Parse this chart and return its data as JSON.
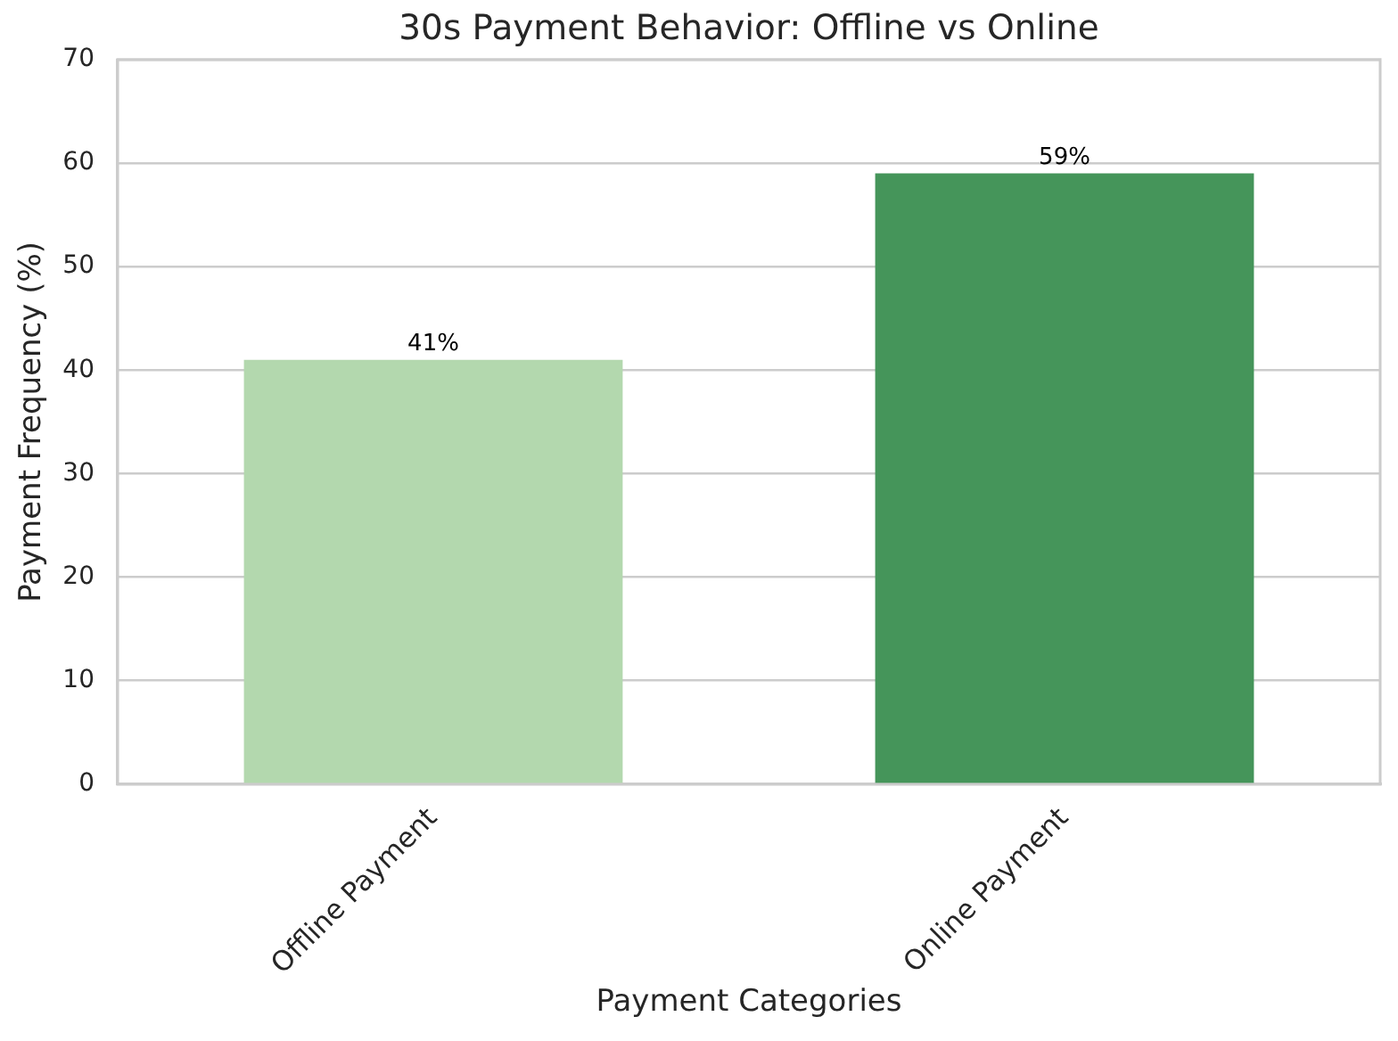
{
  "chart_data": {
    "type": "bar",
    "title": "30s Payment Behavior: Offline vs Online",
    "xlabel": "Payment Categories",
    "ylabel": "Payment Frequency (%)",
    "categories": [
      "Offline Payment",
      "Online Payment"
    ],
    "values": [
      41,
      59
    ],
    "colors": [
      "#b3d8ae",
      "#45955a"
    ],
    "value_labels": [
      "41%",
      "59%"
    ],
    "ylim": [
      0,
      70
    ],
    "yticks": [
      0,
      10,
      20,
      30,
      40,
      50,
      60,
      70
    ],
    "grid": "y"
  }
}
